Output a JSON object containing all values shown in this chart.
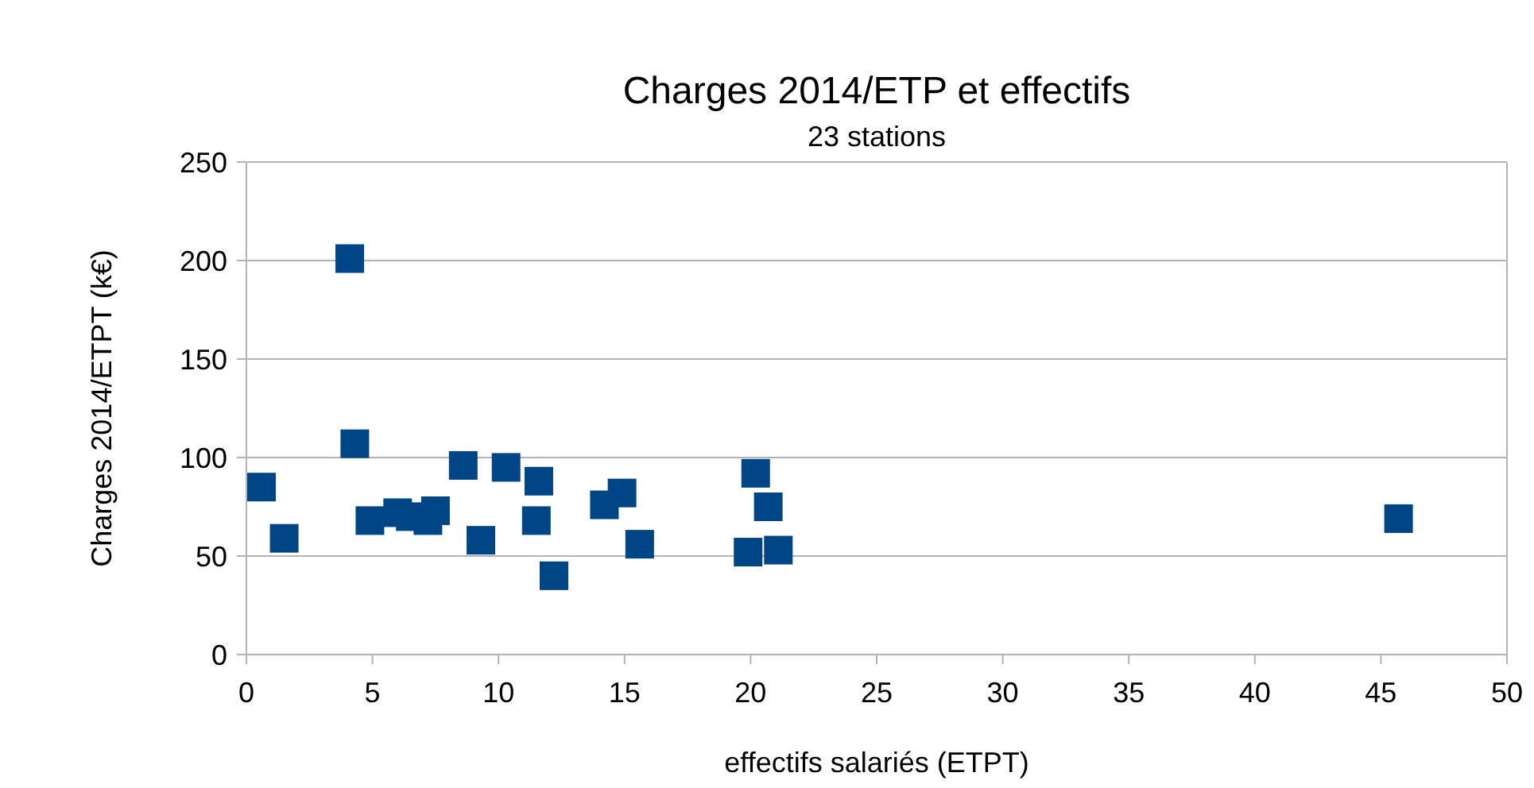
{
  "chart_data": {
    "type": "scatter",
    "title": "Charges 2014/ETP et effectifs",
    "subtitle": "23 stations",
    "xlabel": "effectifs salariés (ETPT)",
    "ylabel": "Charges 2014/ETPT (k€)",
    "x": [
      0.6,
      1.5,
      4.1,
      4.3,
      4.9,
      6.0,
      6.5,
      7.2,
      7.5,
      8.6,
      9.3,
      10.3,
      11.6,
      11.5,
      12.2,
      14.2,
      14.9,
      15.6,
      19.9,
      20.2,
      20.7,
      21.1,
      45.7
    ],
    "series": [
      {
        "color": "#004586",
        "values": [
          85,
          59,
          201,
          107,
          68,
          72,
          70,
          68,
          73,
          96,
          58,
          95,
          88,
          68,
          40,
          76,
          82,
          56,
          52,
          92,
          75,
          53,
          69
        ]
      }
    ],
    "xlim": [
      0,
      50
    ],
    "xticks": [
      0,
      5,
      10,
      15,
      20,
      25,
      30,
      35,
      40,
      45,
      50
    ],
    "ylim": [
      0,
      250
    ],
    "yticks": [
      0,
      50,
      100,
      150,
      200,
      250
    ],
    "grid": "y",
    "marker": "square"
  }
}
